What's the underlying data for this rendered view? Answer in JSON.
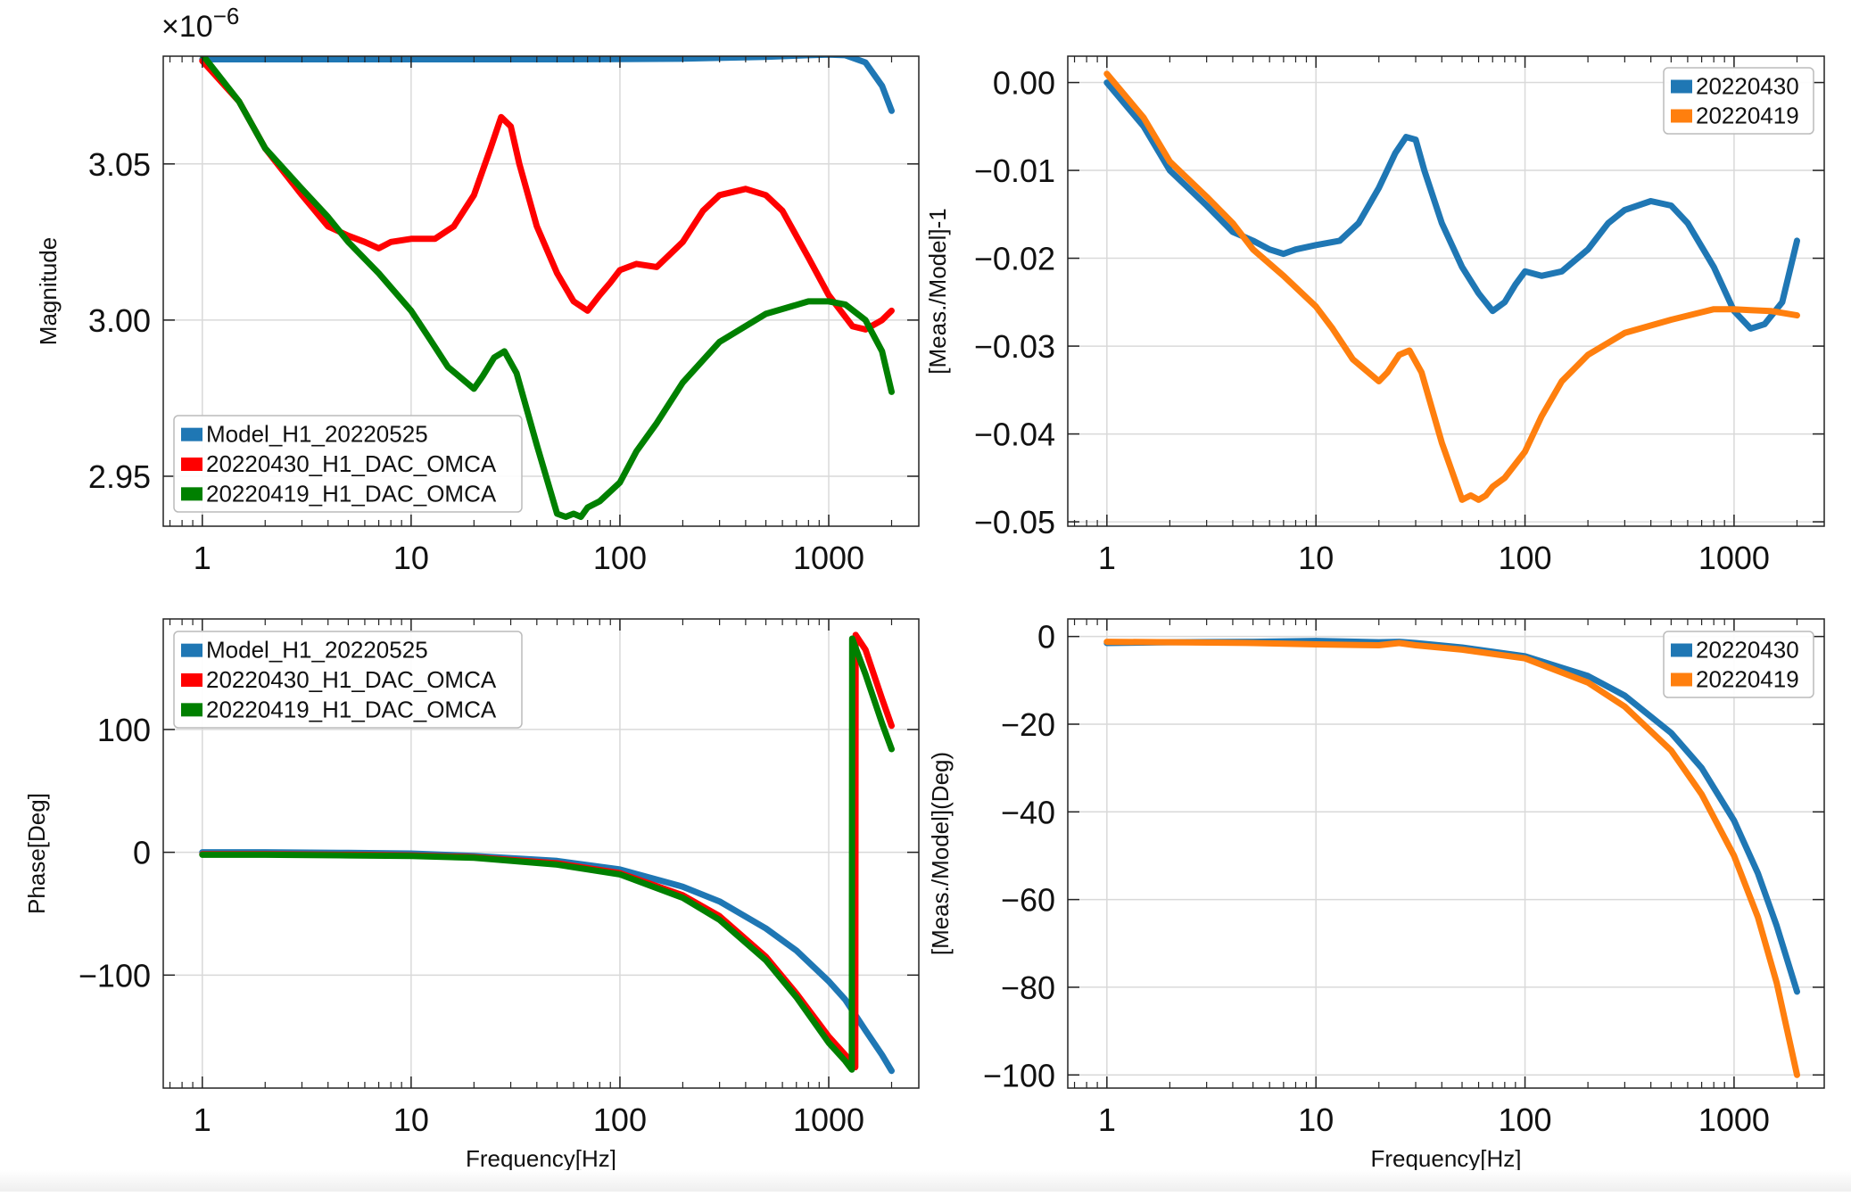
{
  "chart_data": [
    {
      "type": "line",
      "id": "top-left",
      "title": "",
      "xlabel": "",
      "ylabel": "Magnitude",
      "xscale": "log",
      "xlim": [
        0.65,
        2700
      ],
      "ylim": [
        2.934,
        3.0845
      ],
      "y_multiplier_label": "×10",
      "y_multiplier_exp": "−6",
      "grid": true,
      "legend_position": "lower-left",
      "xticks": [
        1,
        10,
        100,
        1000
      ],
      "xtick_labels": [
        "1",
        "10",
        "100",
        "1000"
      ],
      "yticks": [
        2.95,
        3.0,
        3.05
      ],
      "ytick_labels": [
        "2.95",
        "3.00",
        "3.05"
      ],
      "series": [
        {
          "name": "Model_H1_20220525",
          "color": "#1f77b4",
          "x": [
            1,
            2,
            5,
            10,
            20,
            50,
            100,
            200,
            500,
            800,
            1000,
            1200,
            1500,
            1800,
            2000
          ],
          "y": [
            3.0835,
            3.0835,
            3.0835,
            3.0835,
            3.0835,
            3.0835,
            3.0836,
            3.0837,
            3.0843,
            3.0848,
            3.085,
            3.0848,
            3.0825,
            3.075,
            3.067
          ]
        },
        {
          "name": "20220430_H1_DAC_OMCA",
          "color": "#ff0000",
          "x": [
            1,
            1.5,
            2,
            3,
            4,
            5,
            6,
            7,
            8,
            10,
            13,
            16,
            20,
            24,
            27,
            30,
            33,
            40,
            50,
            60,
            70,
            80,
            90,
            100,
            120,
            150,
            200,
            250,
            300,
            400,
            500,
            600,
            800,
            1000,
            1300,
            1500,
            1800,
            2000
          ],
          "y": [
            3.083,
            3.07,
            3.055,
            3.04,
            3.03,
            3.027,
            3.025,
            3.023,
            3.025,
            3.026,
            3.026,
            3.03,
            3.04,
            3.055,
            3.065,
            3.062,
            3.05,
            3.03,
            3.015,
            3.006,
            3.003,
            3.008,
            3.012,
            3.016,
            3.018,
            3.017,
            3.025,
            3.035,
            3.04,
            3.042,
            3.04,
            3.035,
            3.02,
            3.008,
            2.998,
            2.997,
            3.0,
            3.003
          ]
        },
        {
          "name": "20220419_H1_DAC_OMCA",
          "color": "#008000",
          "x": [
            1,
            1.5,
            2,
            3,
            4,
            5,
            7,
            10,
            12,
            15,
            20,
            22,
            25,
            28,
            32,
            40,
            50,
            55,
            60,
            65,
            70,
            80,
            100,
            120,
            150,
            200,
            300,
            500,
            800,
            1000,
            1200,
            1500,
            1800,
            2000
          ],
          "y": [
            3.085,
            3.07,
            3.055,
            3.042,
            3.033,
            3.025,
            3.015,
            3.003,
            2.995,
            2.985,
            2.978,
            2.982,
            2.988,
            2.99,
            2.983,
            2.96,
            2.938,
            2.937,
            2.938,
            2.937,
            2.94,
            2.942,
            2.948,
            2.958,
            2.967,
            2.98,
            2.993,
            3.002,
            3.006,
            3.006,
            3.005,
            3.0,
            2.99,
            2.977
          ]
        }
      ]
    },
    {
      "type": "line",
      "id": "top-right",
      "title": "",
      "xlabel": "",
      "ylabel": "[Meas./Model]-1",
      "xscale": "log",
      "xlim": [
        0.65,
        2700
      ],
      "ylim": [
        -0.0505,
        0.003
      ],
      "grid": true,
      "legend_position": "top-right",
      "xticks": [
        1,
        10,
        100,
        1000
      ],
      "xtick_labels": [
        "1",
        "10",
        "100",
        "1000"
      ],
      "yticks": [
        -0.05,
        -0.04,
        -0.03,
        -0.02,
        -0.01,
        0
      ],
      "ytick_labels": [
        "−0.05",
        "−0.04",
        "−0.03",
        "−0.02",
        "−0.01",
        "0.00"
      ],
      "series": [
        {
          "name": "20220430",
          "color": "#1f77b4",
          "x": [
            1,
            1.5,
            2,
            3,
            4,
            5,
            6,
            7,
            8,
            10,
            13,
            16,
            20,
            24,
            27,
            30,
            33,
            40,
            50,
            60,
            70,
            80,
            90,
            100,
            120,
            150,
            200,
            250,
            300,
            400,
            500,
            600,
            800,
            1000,
            1200,
            1400,
            1700,
            2000
          ],
          "y": [
            0.0,
            -0.005,
            -0.01,
            -0.014,
            -0.017,
            -0.018,
            -0.019,
            -0.0195,
            -0.019,
            -0.0185,
            -0.018,
            -0.016,
            -0.012,
            -0.008,
            -0.0062,
            -0.0065,
            -0.01,
            -0.016,
            -0.021,
            -0.024,
            -0.026,
            -0.025,
            -0.023,
            -0.0215,
            -0.022,
            -0.0215,
            -0.019,
            -0.016,
            -0.0145,
            -0.0135,
            -0.014,
            -0.016,
            -0.021,
            -0.026,
            -0.028,
            -0.0275,
            -0.025,
            -0.018
          ]
        },
        {
          "name": "20220419",
          "color": "#ff7f0e",
          "x": [
            1,
            1.5,
            2,
            3,
            4,
            5,
            7,
            10,
            12,
            15,
            20,
            22,
            25,
            28,
            32,
            40,
            50,
            55,
            60,
            65,
            70,
            80,
            100,
            120,
            150,
            200,
            300,
            500,
            800,
            1000,
            1200,
            1500,
            2000
          ],
          "y": [
            0.001,
            -0.004,
            -0.009,
            -0.013,
            -0.016,
            -0.019,
            -0.022,
            -0.0255,
            -0.028,
            -0.0315,
            -0.034,
            -0.033,
            -0.031,
            -0.0305,
            -0.033,
            -0.041,
            -0.0475,
            -0.047,
            -0.0475,
            -0.047,
            -0.046,
            -0.045,
            -0.042,
            -0.038,
            -0.034,
            -0.031,
            -0.0285,
            -0.027,
            -0.0258,
            -0.0258,
            -0.0259,
            -0.026,
            -0.0265
          ]
        }
      ]
    },
    {
      "type": "line",
      "id": "bottom-left",
      "title": "",
      "xlabel": "Frequency[Hz]",
      "ylabel": "Phase[Deg]",
      "xscale": "log",
      "xlim": [
        0.65,
        2700
      ],
      "ylim": [
        -192,
        190
      ],
      "grid": true,
      "legend_position": "top-left",
      "xticks": [
        1,
        10,
        100,
        1000
      ],
      "xtick_labels": [
        "1",
        "10",
        "100",
        "1000"
      ],
      "yticks": [
        -100,
        0,
        100
      ],
      "ytick_labels": [
        "−100",
        "0",
        "100"
      ],
      "series": [
        {
          "name": "Model_H1_20220525",
          "color": "#1f77b4",
          "x": [
            1,
            2,
            5,
            10,
            20,
            50,
            100,
            200,
            300,
            500,
            700,
            1000,
            1200,
            1500,
            1800,
            2000
          ],
          "y": [
            0,
            0,
            -0.5,
            -1,
            -3,
            -7,
            -14,
            -28,
            -40,
            -62,
            -80,
            -105,
            -120,
            -145,
            -165,
            -178
          ]
        },
        {
          "name": "20220430_H1_DAC_OMCA",
          "color": "#ff0000",
          "x": [
            1,
            2,
            5,
            10,
            20,
            50,
            100,
            200,
            300,
            500,
            700,
            1000,
            1200,
            1340,
            1345,
            1500,
            1800,
            2000
          ],
          "y": [
            -1.5,
            -1.5,
            -2,
            -2.5,
            -4,
            -9,
            -17,
            -35,
            -52,
            -85,
            -115,
            -150,
            -165,
            -175,
            177,
            165,
            125,
            103
          ]
        },
        {
          "name": "20220419_H1_DAC_OMCA",
          "color": "#008000",
          "x": [
            1,
            2,
            5,
            10,
            20,
            50,
            100,
            200,
            300,
            500,
            700,
            1000,
            1200,
            1290,
            1295,
            1500,
            1800,
            2000
          ],
          "y": [
            -2,
            -2,
            -2.5,
            -3,
            -4.5,
            -10,
            -18,
            -37,
            -55,
            -88,
            -118,
            -155,
            -170,
            -177,
            174,
            145,
            105,
            84
          ]
        }
      ]
    },
    {
      "type": "line",
      "id": "bottom-right",
      "title": "",
      "xlabel": "Frequency[Hz]",
      "ylabel": "[Meas./Model](Deg)",
      "xscale": "log",
      "xlim": [
        0.65,
        2700
      ],
      "ylim": [
        -103,
        4
      ],
      "grid": true,
      "legend_position": "top-right",
      "xticks": [
        1,
        10,
        100,
        1000
      ],
      "xtick_labels": [
        "1",
        "10",
        "100",
        "1000"
      ],
      "yticks": [
        -100,
        -80,
        -60,
        -40,
        -20,
        0
      ],
      "ytick_labels": [
        "−100",
        "−80",
        "−60",
        "−40",
        "−20",
        "0"
      ],
      "series": [
        {
          "name": "20220430",
          "color": "#1f77b4",
          "x": [
            1,
            2,
            5,
            10,
            20,
            25,
            30,
            50,
            100,
            200,
            300,
            500,
            700,
            1000,
            1300,
            1600,
            2000
          ],
          "y": [
            -1.5,
            -1.3,
            -1.2,
            -1,
            -1.3,
            -1.2,
            -1.5,
            -2.5,
            -4.5,
            -9,
            -13.5,
            -22,
            -30,
            -42,
            -54,
            -66,
            -81
          ]
        },
        {
          "name": "20220419",
          "color": "#ff7f0e",
          "x": [
            1,
            2,
            5,
            10,
            20,
            25,
            30,
            50,
            100,
            200,
            300,
            500,
            700,
            1000,
            1300,
            1600,
            2000
          ],
          "y": [
            -1.2,
            -1.3,
            -1.5,
            -1.8,
            -2,
            -1.5,
            -2,
            -3,
            -5,
            -10.5,
            -16,
            -26,
            -36,
            -50,
            -64,
            -79,
            -100
          ]
        }
      ]
    }
  ]
}
